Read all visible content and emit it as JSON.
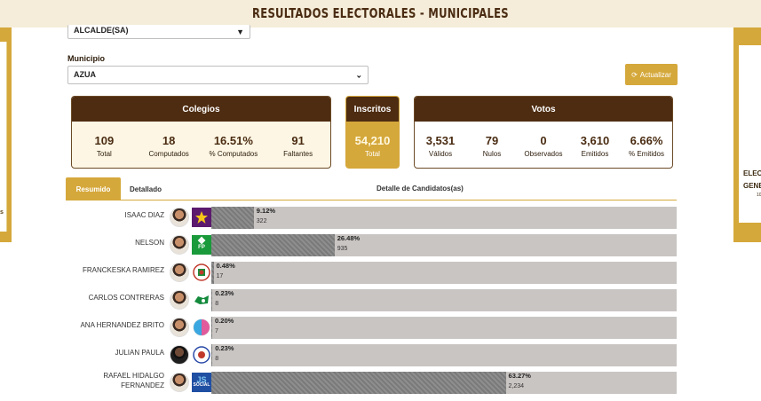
{
  "page": {
    "title": "RESULTADOS ELECTORALES - MUNICIPALES"
  },
  "banners": {
    "right_line1": "ELEC",
    "right_line2": "GENE",
    "right_line3": "10",
    "left_text": "s"
  },
  "filters": {
    "level_select": "ALCALDE(SA)",
    "municipio_label": "Municipio",
    "municipio_select": "AZUA",
    "update_button": "Actualizar"
  },
  "colegios": {
    "title": "Colegios",
    "stats": [
      {
        "value": "109",
        "label": "Total"
      },
      {
        "value": "18",
        "label": "Computados"
      },
      {
        "value": "16.51%",
        "label": "% Computados"
      },
      {
        "value": "91",
        "label": "Faltantes"
      }
    ]
  },
  "inscritos": {
    "title": "Inscritos",
    "value": "54,210",
    "label": "Total"
  },
  "votos": {
    "title": "Votos",
    "stats": [
      {
        "value": "3,531",
        "label": "Válidos"
      },
      {
        "value": "79",
        "label": "Nulos"
      },
      {
        "value": "0",
        "label": "Observados"
      },
      {
        "value": "3,610",
        "label": "Emitidos"
      },
      {
        "value": "6.66%",
        "label": "% Emitidos"
      }
    ]
  },
  "tabs": {
    "summary": "Resumido",
    "detailed": "Detallado",
    "section_title": "Detalle de Candidatos(as)"
  },
  "candidates": [
    {
      "name": "ISAAC DIAZ",
      "percent": "9.12%",
      "share": 0.0912,
      "votes": "322",
      "party_icon": "star-party-icon",
      "party_color": "#6a1b7a"
    },
    {
      "name": "NELSON",
      "percent": "26.48%",
      "share": 0.2648,
      "votes": "935",
      "party_icon": "fp-party-icon",
      "party_color": "#1a9a3a"
    },
    {
      "name": "FRANCKESKA RAMIREZ",
      "percent": "0.48%",
      "share": 0.0048,
      "votes": "17",
      "party_icon": "shield-party-icon",
      "party_color": "#c0392b"
    },
    {
      "name": "CARLOS CONTRERAS",
      "percent": "0.23%",
      "share": 0.0023,
      "votes": "8",
      "party_icon": "green-party-icon",
      "party_color": "#138a3c"
    },
    {
      "name": "ANA HERNANDEZ BRITO",
      "percent": "0.20%",
      "share": 0.002,
      "votes": "7",
      "party_icon": "pink-party-icon",
      "party_color": "#e05a9c"
    },
    {
      "name": "JULIAN PAULA",
      "percent": "0.23%",
      "share": 0.0023,
      "votes": "8",
      "party_icon": "circle-party-icon",
      "party_color": "#2a4aa8"
    },
    {
      "name": "RAFAEL HIDALGO FERNANDEZ",
      "percent": "63.27%",
      "share": 0.6327,
      "votes": "2,234",
      "party_icon": "social-party-icon",
      "party_color": "#1f6fc2"
    }
  ]
}
